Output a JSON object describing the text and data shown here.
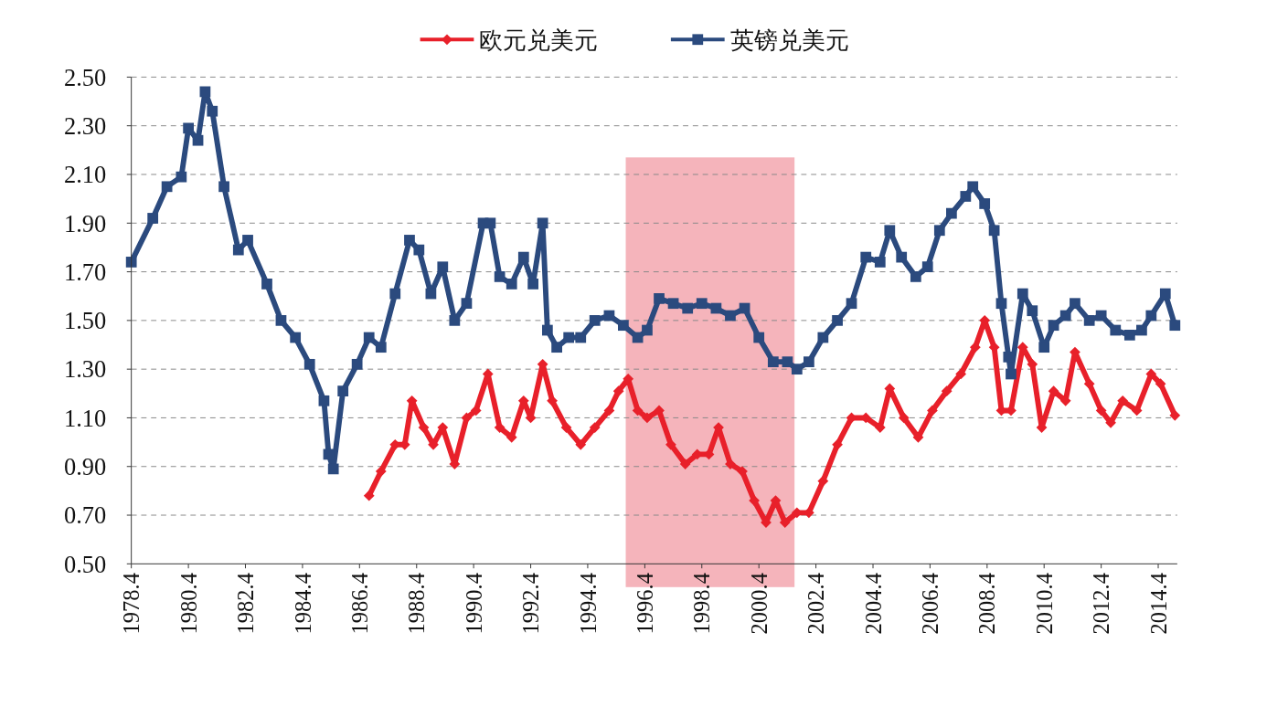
{
  "chart_data": {
    "type": "line",
    "xlim": [
      "1978-04",
      "2014-12"
    ],
    "xticks": [
      {
        "value": "1978-04",
        "label": "1978.4"
      },
      {
        "value": "1980-04",
        "label": "1980.4"
      },
      {
        "value": "1982-04",
        "label": "1982.4"
      },
      {
        "value": "1984-04",
        "label": "1984.4"
      },
      {
        "value": "1986-04",
        "label": "1986.4"
      },
      {
        "value": "1988-04",
        "label": "1988.4"
      },
      {
        "value": "1990-04",
        "label": "1990.4"
      },
      {
        "value": "1992-04",
        "label": "1992.4"
      },
      {
        "value": "1994-04",
        "label": "1994.4"
      },
      {
        "value": "1996-04",
        "label": "1996.4"
      },
      {
        "value": "1998-04",
        "label": "1998.4"
      },
      {
        "value": "2000-04",
        "label": "2000.4"
      },
      {
        "value": "2002-04",
        "label": "2002.4"
      },
      {
        "value": "2004-04",
        "label": "2004.4"
      },
      {
        "value": "2006-04",
        "label": "2006.4"
      },
      {
        "value": "2008-04",
        "label": "2008.4"
      },
      {
        "value": "2010-04",
        "label": "2010.4"
      },
      {
        "value": "2012-04",
        "label": "2012.4"
      },
      {
        "value": "2014-04",
        "label": "2014.4"
      }
    ],
    "ylim": [
      0.5,
      2.5
    ],
    "yticks": [
      {
        "value": 0.5,
        "label": "0.50"
      },
      {
        "value": 0.7,
        "label": "0.70"
      },
      {
        "value": 0.9,
        "label": "0.90"
      },
      {
        "value": 1.1,
        "label": "1.10"
      },
      {
        "value": 1.3,
        "label": "1.30"
      },
      {
        "value": 1.5,
        "label": "1.50"
      },
      {
        "value": 1.7,
        "label": "1.70"
      },
      {
        "value": 1.9,
        "label": "1.90"
      },
      {
        "value": 2.1,
        "label": "2.10"
      },
      {
        "value": 2.3,
        "label": "2.30"
      },
      {
        "value": 2.5,
        "label": "2.50"
      }
    ],
    "grid": "y",
    "legend": "top",
    "line_style": "solid",
    "bands": [
      {
        "axis": "x",
        "from": "1995-08",
        "to": "2001-07",
        "color": "#f08c96"
      }
    ],
    "series": [
      {
        "name": "欧元兑美元",
        "color": "#e8202a",
        "marker": "diamond",
        "x": [
          "1986-08",
          "1987-01",
          "1987-07",
          "1987-11",
          "1988-02",
          "1988-07",
          "1988-11",
          "1989-03",
          "1989-08",
          "1990-01",
          "1990-05",
          "1990-10",
          "1991-03",
          "1991-08",
          "1992-01",
          "1992-04",
          "1992-09",
          "1993-01",
          "1993-07",
          "1994-01",
          "1994-07",
          "1995-01",
          "1995-05",
          "1995-09",
          "1996-01",
          "1996-05",
          "1996-10",
          "1997-03",
          "1997-09",
          "1998-02",
          "1998-07",
          "1998-11",
          "1999-04",
          "1999-09",
          "2000-02",
          "2000-07",
          "2000-11",
          "2001-03",
          "2001-08",
          "2002-01",
          "2002-07",
          "2003-01",
          "2003-07",
          "2004-01",
          "2004-07",
          "2004-11",
          "2005-05",
          "2005-11",
          "2006-05",
          "2006-11",
          "2007-05",
          "2007-11",
          "2008-03",
          "2008-07",
          "2008-10",
          "2009-02",
          "2009-07",
          "2009-11",
          "2010-03",
          "2010-08",
          "2011-01",
          "2011-05",
          "2011-11",
          "2012-04",
          "2012-08",
          "2013-01",
          "2013-07",
          "2014-01",
          "2014-05",
          "2014-11"
        ],
        "values": [
          0.78,
          0.88,
          0.99,
          0.99,
          1.17,
          1.06,
          0.99,
          1.06,
          0.91,
          1.1,
          1.13,
          1.28,
          1.06,
          1.02,
          1.17,
          1.1,
          1.32,
          1.17,
          1.06,
          0.99,
          1.06,
          1.13,
          1.21,
          1.26,
          1.13,
          1.1,
          1.13,
          0.99,
          0.91,
          0.95,
          0.95,
          1.06,
          0.91,
          0.88,
          0.76,
          0.67,
          0.76,
          0.67,
          0.71,
          0.71,
          0.84,
          0.99,
          1.1,
          1.1,
          1.06,
          1.22,
          1.1,
          1.02,
          1.13,
          1.21,
          1.28,
          1.39,
          1.5,
          1.39,
          1.13,
          1.13,
          1.39,
          1.32,
          1.06,
          1.21,
          1.17,
          1.37,
          1.24,
          1.13,
          1.08,
          1.17,
          1.13,
          1.28,
          1.24,
          1.11
        ]
      },
      {
        "name": "英镑兑美元",
        "color": "#2b4a7e",
        "marker": "square",
        "x": [
          "1978-04",
          "1979-01",
          "1979-07",
          "1980-01",
          "1980-04",
          "1980-08",
          "1980-11",
          "1981-02",
          "1981-07",
          "1982-01",
          "1982-05",
          "1983-01",
          "1983-07",
          "1984-01",
          "1984-07",
          "1985-01",
          "1985-03",
          "1985-05",
          "1985-09",
          "1986-03",
          "1986-08",
          "1987-01",
          "1987-07",
          "1988-01",
          "1988-05",
          "1988-10",
          "1989-03",
          "1989-08",
          "1990-01",
          "1990-08",
          "1990-11",
          "1991-03",
          "1991-08",
          "1992-01",
          "1992-05",
          "1992-09",
          "1992-11",
          "1993-03",
          "1993-08",
          "1994-01",
          "1994-07",
          "1995-01",
          "1995-07",
          "1996-01",
          "1996-05",
          "1996-10",
          "1997-04",
          "1997-10",
          "1998-04",
          "1998-10",
          "1999-04",
          "1999-10",
          "2000-04",
          "2000-10",
          "2001-04",
          "2001-08",
          "2002-01",
          "2002-07",
          "2003-01",
          "2003-07",
          "2004-01",
          "2004-07",
          "2004-11",
          "2005-04",
          "2005-10",
          "2006-03",
          "2006-08",
          "2007-01",
          "2007-07",
          "2007-10",
          "2008-03",
          "2008-07",
          "2008-10",
          "2009-01",
          "2009-02",
          "2009-07",
          "2009-11",
          "2010-04",
          "2010-08",
          "2011-01",
          "2011-05",
          "2011-11",
          "2012-04",
          "2012-10",
          "2013-04",
          "2013-09",
          "2014-01",
          "2014-07",
          "2014-11"
        ],
        "values": [
          1.74,
          1.92,
          2.05,
          2.09,
          2.29,
          2.24,
          2.44,
          2.36,
          2.05,
          1.79,
          1.83,
          1.65,
          1.5,
          1.43,
          1.32,
          1.17,
          0.95,
          0.89,
          1.21,
          1.32,
          1.43,
          1.39,
          1.61,
          1.83,
          1.79,
          1.61,
          1.72,
          1.5,
          1.57,
          1.9,
          1.9,
          1.68,
          1.65,
          1.76,
          1.65,
          1.9,
          1.46,
          1.39,
          1.43,
          1.43,
          1.5,
          1.52,
          1.48,
          1.43,
          1.46,
          1.59,
          1.57,
          1.55,
          1.57,
          1.55,
          1.52,
          1.55,
          1.43,
          1.33,
          1.33,
          1.3,
          1.33,
          1.43,
          1.5,
          1.57,
          1.76,
          1.74,
          1.87,
          1.76,
          1.68,
          1.72,
          1.87,
          1.94,
          2.01,
          2.05,
          1.98,
          1.87,
          1.57,
          1.35,
          1.28,
          1.61,
          1.54,
          1.39,
          1.48,
          1.52,
          1.57,
          1.5,
          1.52,
          1.46,
          1.44,
          1.46,
          1.52,
          1.61,
          1.48
        ]
      }
    ]
  }
}
